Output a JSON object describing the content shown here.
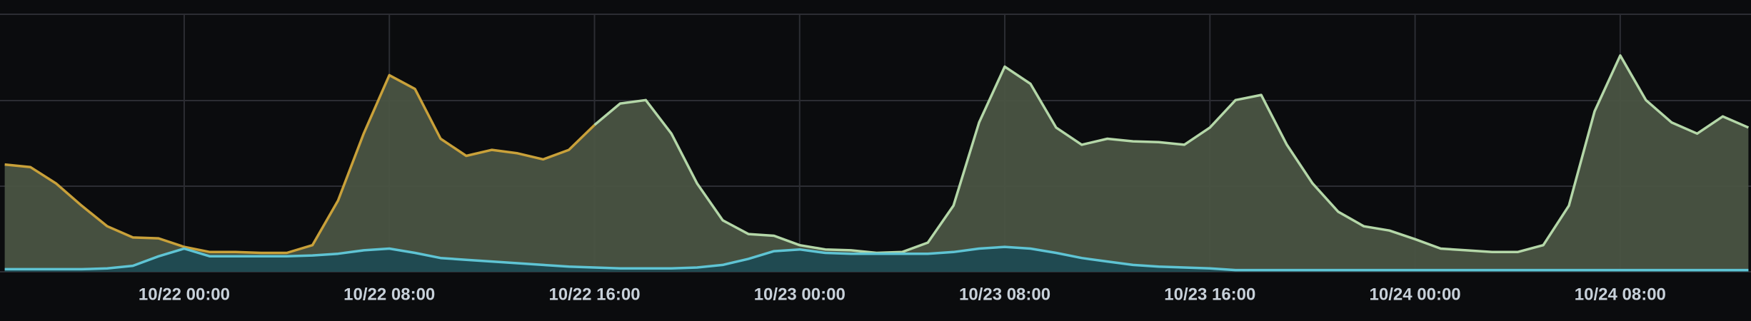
{
  "chart_data": {
    "type": "area",
    "x": [
      "10/21 17:00",
      "10/21 18:00",
      "10/21 19:00",
      "10/21 20:00",
      "10/21 21:00",
      "10/21 22:00",
      "10/21 23:00",
      "10/22 00:00",
      "10/22 01:00",
      "10/22 02:00",
      "10/22 03:00",
      "10/22 04:00",
      "10/22 05:00",
      "10/22 06:00",
      "10/22 07:00",
      "10/22 08:00",
      "10/22 09:00",
      "10/22 10:00",
      "10/22 11:00",
      "10/22 12:00",
      "10/22 13:00",
      "10/22 14:00",
      "10/22 15:00",
      "10/22 16:00",
      "10/22 17:00",
      "10/22 18:00",
      "10/22 19:00",
      "10/22 20:00",
      "10/22 21:00",
      "10/22 22:00",
      "10/22 23:00",
      "10/23 00:00",
      "10/23 01:00",
      "10/23 02:00",
      "10/23 03:00",
      "10/23 04:00",
      "10/23 05:00",
      "10/23 06:00",
      "10/23 07:00",
      "10/23 08:00",
      "10/23 09:00",
      "10/23 10:00",
      "10/23 11:00",
      "10/23 12:00",
      "10/23 13:00",
      "10/23 14:00",
      "10/23 15:00",
      "10/23 16:00",
      "10/23 17:00",
      "10/23 18:00",
      "10/23 19:00",
      "10/23 20:00",
      "10/23 21:00",
      "10/23 22:00",
      "10/23 23:00",
      "10/24 00:00",
      "10/24 01:00",
      "10/24 02:00",
      "10/24 03:00",
      "10/24 04:00",
      "10/24 05:00",
      "10/24 06:00",
      "10/24 07:00",
      "10/24 08:00",
      "10/24 09:00",
      "10/24 10:00",
      "10/24 11:00",
      "10/24 12:00",
      "10/24 13:00"
    ],
    "series": [
      {
        "color": "#c9a13a",
        "fill": "#4a5443",
        "values": [
          1.25,
          1.22,
          1.03,
          0.77,
          0.53,
          0.4,
          0.39,
          0.29,
          0.23,
          0.23,
          0.22,
          0.22,
          0.31,
          0.83,
          1.61,
          2.29,
          2.13,
          1.55,
          1.35,
          1.42,
          1.38,
          1.31,
          1.42,
          1.71,
          null,
          null,
          null,
          null,
          null,
          null,
          null,
          null,
          null,
          null,
          null,
          null,
          null,
          null,
          null,
          null,
          null,
          null,
          null,
          null,
          null,
          null,
          null,
          null,
          null,
          null,
          null,
          null,
          null,
          null,
          null,
          null,
          null,
          null,
          null,
          null,
          null,
          null,
          null,
          null,
          null,
          null,
          null,
          null,
          null
        ]
      },
      {
        "color": "#b4d7a8",
        "fill": "#4a5443",
        "values": [
          null,
          null,
          null,
          null,
          null,
          null,
          null,
          null,
          null,
          null,
          null,
          null,
          null,
          null,
          null,
          null,
          null,
          null,
          null,
          null,
          null,
          null,
          null,
          1.71,
          1.96,
          2.0,
          1.61,
          1.03,
          0.6,
          0.44,
          0.42,
          0.31,
          0.26,
          0.25,
          0.22,
          0.23,
          0.34,
          0.77,
          1.74,
          2.39,
          2.19,
          1.68,
          1.48,
          1.55,
          1.52,
          1.51,
          1.48,
          1.68,
          2.0,
          2.06,
          1.48,
          1.03,
          0.7,
          0.53,
          0.48,
          0.38,
          0.27,
          0.25,
          0.23,
          0.23,
          0.31,
          0.77,
          1.87,
          2.52,
          2.0,
          1.74,
          1.61,
          1.81,
          1.68
        ]
      },
      {
        "color": "#5fc4d4",
        "fill": "#1f4a52",
        "values": [
          0.03,
          0.03,
          0.03,
          0.03,
          0.04,
          0.07,
          0.18,
          0.27,
          0.18,
          0.18,
          0.18,
          0.18,
          0.19,
          0.21,
          0.25,
          0.27,
          0.22,
          0.16,
          0.14,
          0.12,
          0.1,
          0.08,
          0.06,
          0.05,
          0.04,
          0.04,
          0.04,
          0.05,
          0.08,
          0.15,
          0.24,
          0.26,
          0.22,
          0.21,
          0.21,
          0.21,
          0.21,
          0.23,
          0.27,
          0.29,
          0.27,
          0.22,
          0.16,
          0.12,
          0.08,
          0.06,
          0.05,
          0.04,
          0.02,
          0.02,
          0.02,
          0.02,
          0.02,
          0.02,
          0.02,
          0.02,
          0.02,
          0.02,
          0.02,
          0.02,
          0.02,
          0.02,
          0.02,
          0.02,
          0.02,
          0.02,
          0.02,
          0.02,
          0.02
        ]
      }
    ],
    "xlim": [
      "10/21 16:49",
      "10/24 13:06"
    ],
    "xticks": [
      "10/22 00:00",
      "10/22 08:00",
      "10/22 16:00",
      "10/23 00:00",
      "10/23 08:00",
      "10/23 16:00",
      "10/24 00:00",
      "10/24 08:00"
    ],
    "ylim": [
      0,
      3.0
    ]
  }
}
